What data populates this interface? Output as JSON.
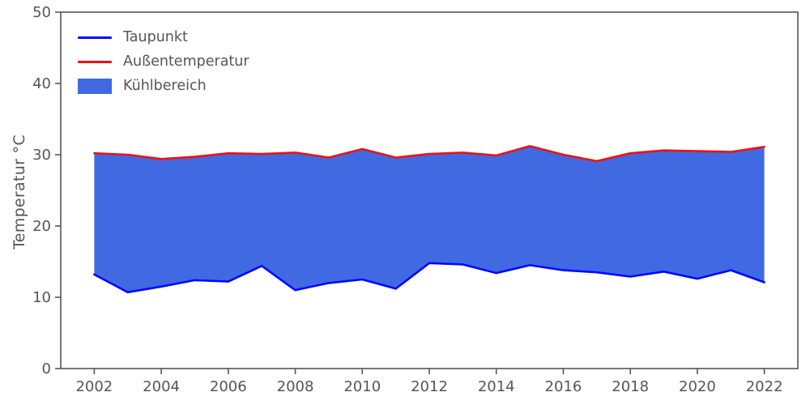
{
  "chart_data": {
    "type": "area",
    "title": "",
    "xlabel": "",
    "ylabel": "Temperatur °C",
    "xlim": [
      2001,
      2023
    ],
    "ylim": [
      0,
      50
    ],
    "xticks": [
      2002,
      2004,
      2006,
      2008,
      2010,
      2012,
      2014,
      2016,
      2018,
      2020,
      2022
    ],
    "yticks": [
      0,
      10,
      20,
      30,
      40,
      50
    ],
    "grid": false,
    "legend_position": "upper-left",
    "axis_color": "#54555f",
    "x": [
      2002,
      2003,
      2004,
      2005,
      2006,
      2007,
      2008,
      2009,
      2010,
      2011,
      2012,
      2013,
      2014,
      2015,
      2016,
      2017,
      2018,
      2019,
      2020,
      2021,
      2022
    ],
    "series": [
      {
        "name": "Taupunkt",
        "color": "#0008ff",
        "values": [
          13.2,
          10.7,
          11.5,
          12.4,
          12.2,
          14.4,
          11.0,
          12.0,
          12.5,
          11.2,
          14.8,
          14.6,
          13.4,
          14.5,
          13.8,
          13.5,
          12.9,
          13.6,
          12.6,
          13.8,
          12.1
        ]
      },
      {
        "name": "Außentemperatur",
        "color": "#ed1212",
        "values": [
          30.2,
          30.0,
          29.4,
          29.7,
          30.2,
          30.1,
          30.3,
          29.6,
          30.8,
          29.6,
          30.1,
          30.3,
          29.9,
          31.2,
          30.0,
          29.1,
          30.2,
          30.6,
          30.5,
          30.4,
          31.1
        ]
      }
    ],
    "fill": {
      "name": "Kühlbereich",
      "color": "#4169e1",
      "between": [
        "Taupunkt",
        "Außentemperatur"
      ]
    }
  }
}
